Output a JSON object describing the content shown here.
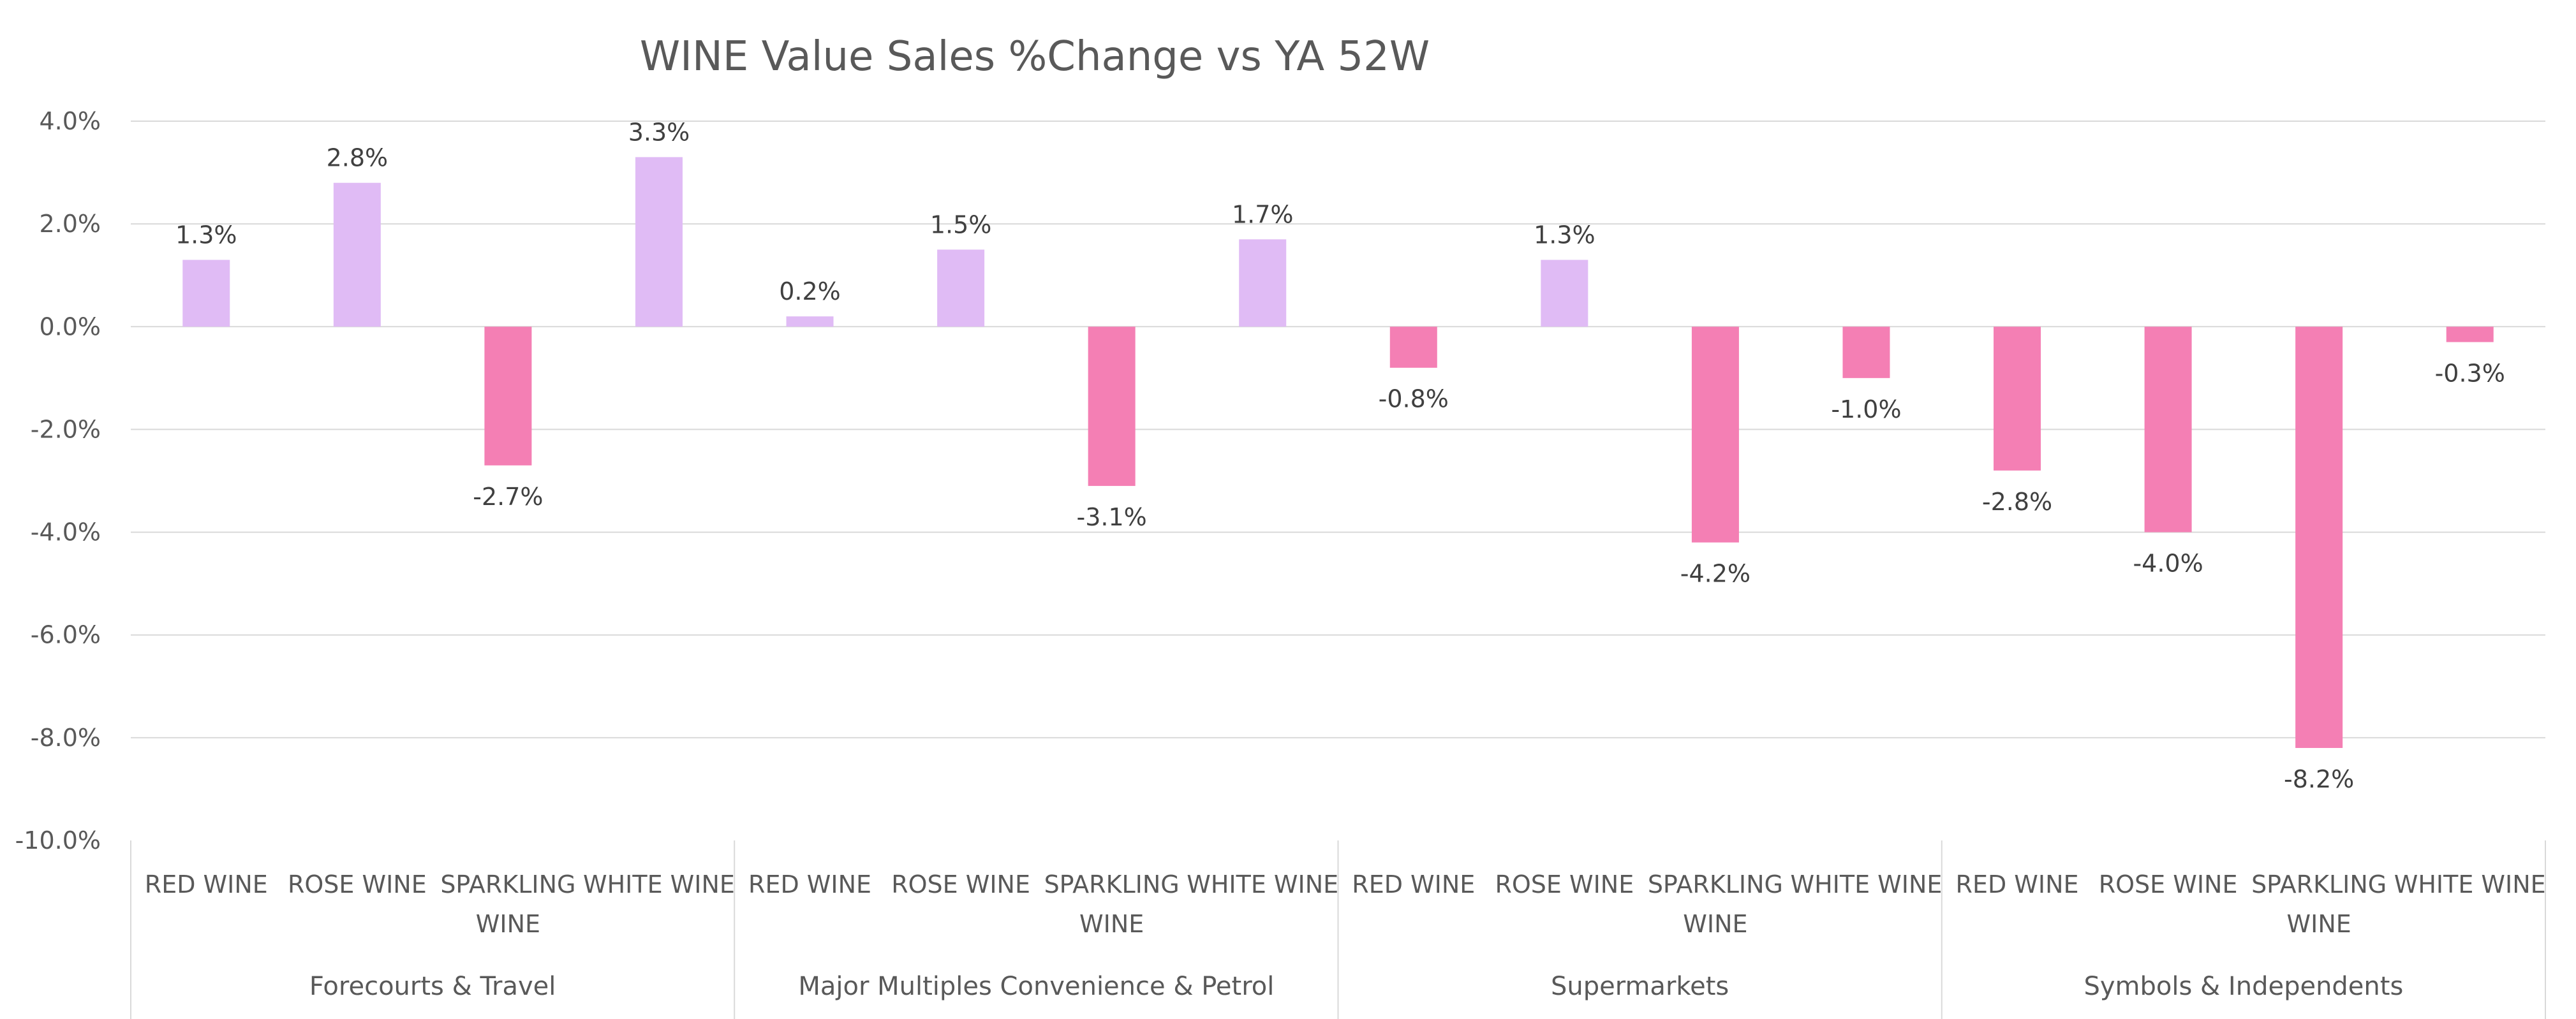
{
  "chart_data": {
    "type": "bar",
    "title": "WINE Value Sales %Change vs YA  52W",
    "xlabel": "",
    "ylabel": "",
    "ylim": [
      -10,
      4
    ],
    "y_ticks": [
      "4.0%",
      "2.0%",
      "0.0%",
      "-2.0%",
      "-4.0%",
      "-6.0%",
      "-8.0%",
      "-10.0%"
    ],
    "y_tick_values": [
      4,
      2,
      0,
      -2,
      -4,
      -6,
      -8,
      -10
    ],
    "grid": true,
    "legend": "none",
    "colors": {
      "positive": "#e0bbf5",
      "negative": "#f47fb4"
    },
    "groups": [
      {
        "name": "Forecourts & Travel",
        "categories": [
          [
            "RED WINE"
          ],
          [
            "ROSE WINE"
          ],
          [
            "SPARKLING",
            "WINE"
          ],
          [
            "WHITE WINE"
          ]
        ],
        "values": [
          1.3,
          2.8,
          -2.7,
          3.3
        ],
        "labels": [
          "1.3%",
          "2.8%",
          "-2.7%",
          "3.3%"
        ]
      },
      {
        "name": "Major Multiples Convenience & Petrol",
        "categories": [
          [
            "RED WINE"
          ],
          [
            "ROSE WINE"
          ],
          [
            "SPARKLING",
            "WINE"
          ],
          [
            "WHITE WINE"
          ]
        ],
        "values": [
          0.2,
          1.5,
          -3.1,
          1.7
        ],
        "labels": [
          "0.2%",
          "1.5%",
          "-3.1%",
          "1.7%"
        ]
      },
      {
        "name": "Supermarkets",
        "categories": [
          [
            "RED WINE"
          ],
          [
            "ROSE WINE"
          ],
          [
            "SPARKLING",
            "WINE"
          ],
          [
            "WHITE WINE"
          ]
        ],
        "values": [
          -0.8,
          1.3,
          -4.2,
          -1.0
        ],
        "labels": [
          "-0.8%",
          "1.3%",
          "-4.2%",
          "-1.0%"
        ]
      },
      {
        "name": "Symbols & Independents",
        "categories": [
          [
            "RED WINE"
          ],
          [
            "ROSE WINE"
          ],
          [
            "SPARKLING",
            "WINE"
          ],
          [
            "WHITE WINE"
          ]
        ],
        "values": [
          -2.8,
          -4.0,
          -8.2,
          -0.3
        ],
        "labels": [
          "-2.8%",
          "-4.0%",
          "-8.2%",
          "-0.3%"
        ]
      }
    ]
  }
}
